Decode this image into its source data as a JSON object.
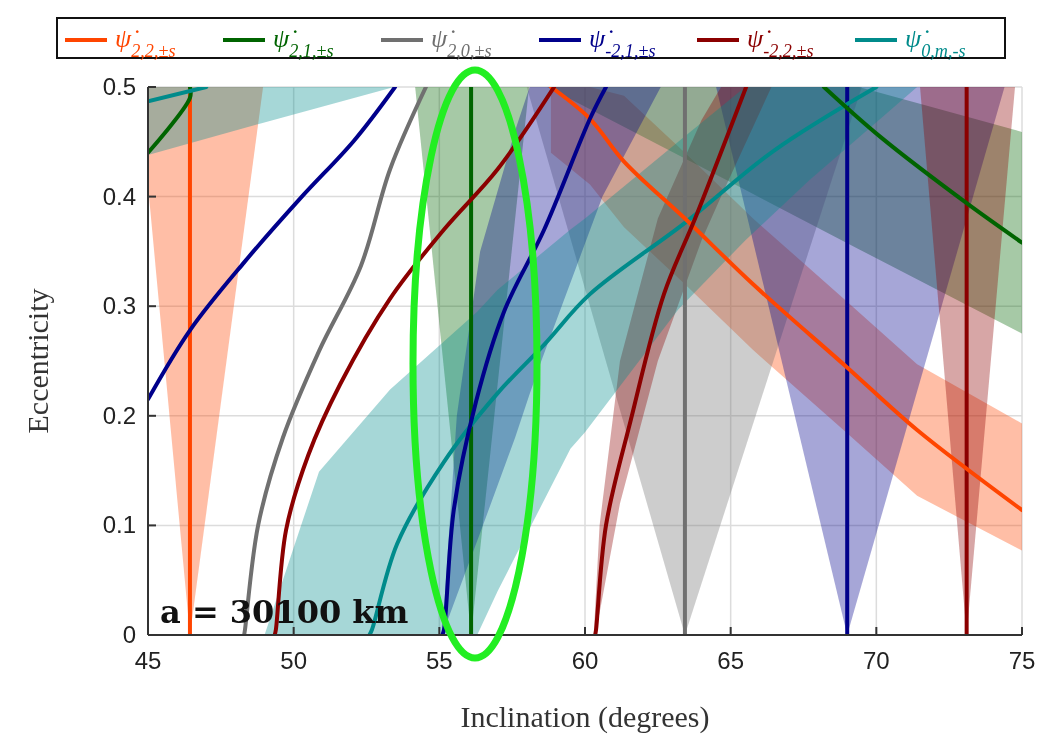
{
  "chart_data": {
    "type": "line",
    "xlabel": "Inclination (degrees)",
    "ylabel": "Eccentricity",
    "xlim": [
      45,
      75
    ],
    "ylim": [
      0,
      0.5
    ],
    "xticks": [
      45,
      50,
      55,
      60,
      65,
      70,
      75
    ],
    "yticks": [
      0,
      0.1,
      0.2,
      0.3,
      0.4,
      0.5
    ],
    "grid": true,
    "legend": "top",
    "line_style": "solid",
    "marker": "none",
    "annotations": [
      "a = 30100 km"
    ],
    "series": [
      {
        "name": "ψ̇$_{2,2,±s}$",
        "color": "#ff4500",
        "x": [
          46.44,
          46.44
        ],
        "values": [
          0,
          0.5
        ]
      },
      {
        "name": "ψ̇$_{2,1,±s}$",
        "color": "#006400",
        "x": [
          56.09,
          56.09
        ],
        "values": [
          0,
          0.5
        ]
      },
      {
        "name": "ψ̇$_{2,0,±s}$",
        "color": "#707070",
        "x": [
          63.43,
          63.43
        ],
        "values": [
          0,
          0.5
        ]
      },
      {
        "name": "ψ̇$_{-2,1,±s}$",
        "color": "#00008b",
        "x": [
          69.0,
          69.0
        ],
        "values": [
          0,
          0.5
        ]
      },
      {
        "name": "ψ̇$_{-2,2,±s}$",
        "color": "#8b0000",
        "x": [
          73.1,
          73.1
        ],
        "values": [
          0,
          0.5
        ]
      },
      {
        "name": "ψ̇$_{0,m,-s}$",
        "color": "#008b8b",
        "x": [
          52.6,
          52.69,
          53.55,
          55.16,
          56.98,
          58.6,
          60.17,
          63.43,
          66.49,
          70.0
        ],
        "values": [
          0,
          0.005,
          0.083,
          0.158,
          0.22,
          0.265,
          0.311,
          0.376,
          0.442,
          0.5
        ]
      },
      {
        "type": "area",
        "color": "#ff4500",
        "x": [
          45,
          46.44,
          48.95,
          45
        ],
        "values": [
          0.41,
          0,
          0.5,
          0.5
        ]
      },
      {
        "type": "area",
        "color": "#ff4500",
        "x": [
          58.83,
          60.17,
          61.34,
          63.43,
          65.77,
          68.96,
          71.4,
          75,
          75,
          71.4,
          68.96,
          65.77,
          63.43,
          61.34,
          60.17,
          58.83
        ],
        "values": [
          0.44,
          0.411,
          0.372,
          0.32,
          0.26,
          0.185,
          0.127,
          0.077,
          0.193,
          0.247,
          0.305,
          0.38,
          0.44,
          0.492,
          0.5,
          0.5
        ]
      },
      {
        "type": "area",
        "color": "#006400",
        "x": [
          54.17,
          56.09,
          58.08
        ],
        "values": [
          0.5,
          0,
          0.5
        ]
      },
      {
        "type": "area",
        "color": "#006400",
        "x": [
          58.7,
          65.15,
          69.4,
          75,
          75,
          69.4
        ],
        "values": [
          0.5,
          0.411,
          0.352,
          0.275,
          0.459,
          0.5
        ]
      },
      {
        "type": "area",
        "color": "#707070",
        "x": [
          58.0,
          63.43,
          69.5
        ],
        "values": [
          0.5,
          0,
          0.5
        ]
      },
      {
        "type": "area",
        "color": "#00008b",
        "x": [
          64.5,
          69.0,
          74.4
        ],
        "values": [
          0.5,
          0,
          0.5
        ]
      },
      {
        "type": "area",
        "color": "#00008b",
        "x": [
          55.1,
          55.6,
          56.4,
          57.6,
          58.1,
          58.5,
          60.6,
          62.6,
          58.1,
          57.6,
          56.4,
          55.6
        ],
        "values": [
          0,
          0.036,
          0.093,
          0.18,
          0.22,
          0.25,
          0.4,
          0.5,
          0.5,
          0.46,
          0.35,
          0.2
        ]
      },
      {
        "type": "area",
        "color": "#8b0000",
        "x": [
          71.5,
          73.1,
          74.76
        ],
        "values": [
          0.5,
          0,
          0.5
        ]
      },
      {
        "type": "area",
        "color": "#8b0000",
        "x": [
          60.3,
          60.5,
          61.2,
          62.5,
          64,
          64.67,
          66.4,
          64.67,
          64,
          62.5,
          61.2,
          60.5
        ],
        "values": [
          0,
          0.02,
          0.12,
          0.25,
          0.36,
          0.4,
          0.5,
          0.5,
          0.47,
          0.38,
          0.25,
          0.1
        ]
      },
      {
        "type": "area",
        "color": "#008b8b",
        "x": [
          49,
          56.3,
          57,
          59.5,
          60,
          63.2,
          65.5,
          67.7,
          71.4,
          65.5,
          63.2,
          60,
          59.5,
          57,
          56.3,
          53.31,
          50.87
        ],
        "values": [
          0,
          0,
          0.04,
          0.17,
          0.185,
          0.297,
          0.36,
          0.415,
          0.5,
          0.5,
          0.45,
          0.38,
          0.37,
          0.315,
          0.295,
          0.224,
          0.149
        ]
      },
      {
        "type": "area",
        "color": "#008b8b",
        "x": [
          45,
          48.9,
          53.45,
          45
        ],
        "values": [
          0.438,
          0.467,
          0.5,
          0.5
        ]
      },
      {
        "color": "#ff4500",
        "x": [
          58.83,
          60.17,
          61.34,
          63.43,
          65.77,
          68.96,
          71.4,
          75
        ],
        "values": [
          0.5,
          0.471,
          0.432,
          0.38,
          0.32,
          0.245,
          0.187,
          0.114
        ]
      },
      {
        "color": "#006400",
        "x": [
          45,
          46.44,
          46.44
        ],
        "values": [
          0.44,
          0.49,
          0.5
        ]
      },
      {
        "color": "#006400",
        "x": [
          68.2,
          70.16,
          73.1,
          75
        ],
        "values": [
          0.5,
          0.454,
          0.394,
          0.358
        ]
      },
      {
        "color": "#707070",
        "x": [
          48.3,
          48.33,
          48.78,
          49.63,
          50.87,
          52.31,
          53.31,
          54.54
        ],
        "values": [
          0,
          0.005,
          0.1,
          0.18,
          0.259,
          0.337,
          0.425,
          0.5
        ]
      },
      {
        "color": "#00008b",
        "x": [
          45,
          46.44,
          48.3,
          50.25,
          52.07,
          53.48
        ],
        "values": [
          0.215,
          0.278,
          0.34,
          0.399,
          0.451,
          0.5
        ]
      },
      {
        "color": "#00008b",
        "x": [
          55.1,
          55.16,
          55.5,
          56.26,
          57.22,
          58.6,
          60.17,
          60.72
        ],
        "values": [
          0,
          0.005,
          0.115,
          0.213,
          0.295,
          0.37,
          0.471,
          0.5
        ]
      },
      {
        "color": "#8b0000",
        "x": [
          49.35,
          49.39,
          49.74,
          50.5,
          51.6,
          53.31,
          55.16,
          57.0,
          58.94
        ],
        "values": [
          0,
          0.005,
          0.096,
          0.164,
          0.229,
          0.307,
          0.37,
          0.425,
          0.5
        ]
      },
      {
        "color": "#8b0000",
        "x": [
          60.35,
          60.38,
          60.72,
          61.58,
          62.71,
          63.81,
          65.53
        ],
        "values": [
          0,
          0.005,
          0.1,
          0.197,
          0.311,
          0.382,
          0.5
        ]
      },
      {
        "color": "#008b8b",
        "x": [
          45,
          47.0
        ],
        "values": [
          0.487,
          0.5
        ]
      }
    ]
  }
}
